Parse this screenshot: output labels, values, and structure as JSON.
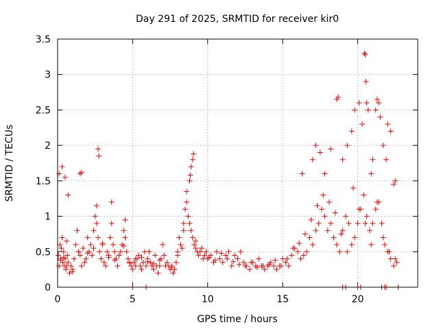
{
  "chart_data": {
    "type": "scatter",
    "title": "Day 291 of 2025, SRMTID for receiver kir0",
    "xlabel": "GPS time / hours",
    "ylabel": "SRMTID / TECUs",
    "xlim": [
      0,
      24
    ],
    "ylim": [
      0,
      3.5
    ],
    "xticks": [
      0,
      5,
      10,
      15,
      20
    ],
    "xtick_labels": [
      "0",
      "5",
      "10",
      "15",
      "20"
    ],
    "yticks": [
      0,
      0.5,
      1,
      1.5,
      2,
      2.5,
      3,
      3.5
    ],
    "ytick_labels": [
      "0",
      "0.5",
      "1",
      "1.5",
      "2",
      "2.5",
      "3",
      "3.5"
    ],
    "grid": true,
    "marker": "+",
    "series": [
      {
        "name": "SRMTID",
        "color": "#ee0000",
        "x": [
          0.05,
          0.1,
          0.15,
          0.2,
          0.25,
          0.3,
          0.35,
          0.4,
          0.45,
          0.5,
          0.55,
          0.6,
          0.65,
          0.7,
          0.8,
          0.9,
          1.0,
          1.1,
          1.2,
          1.3,
          1.4,
          1.5,
          1.6,
          1.7,
          1.8,
          1.9,
          2.0,
          2.1,
          2.2,
          2.3,
          2.4,
          2.5,
          2.6,
          2.7,
          2.8,
          2.9,
          3.0,
          3.1,
          3.2,
          3.3,
          3.4,
          3.5,
          3.6,
          3.7,
          3.8,
          3.9,
          4.0,
          4.1,
          4.2,
          4.3,
          4.4,
          4.5,
          4.6,
          4.7,
          4.8,
          4.9,
          5.0,
          5.1,
          5.2,
          5.3,
          5.4,
          5.5,
          5.6,
          5.7,
          5.8,
          5.9,
          6.0,
          6.1,
          6.2,
          6.3,
          6.4,
          6.5,
          6.6,
          6.7,
          6.8,
          6.9,
          7.0,
          7.1,
          7.2,
          7.3,
          7.4,
          7.5,
          7.6,
          7.7,
          7.8,
          7.9,
          8.0,
          8.1,
          8.2,
          8.3,
          8.4,
          8.5,
          8.6,
          8.7,
          8.8,
          8.9,
          9.0,
          9.1,
          9.2,
          9.3,
          9.4,
          9.5,
          9.6,
          9.7,
          9.8,
          9.9,
          10.0,
          10.2,
          10.4,
          10.6,
          10.8,
          11.0,
          11.2,
          11.4,
          11.6,
          11.8,
          12.0,
          12.2,
          12.4,
          12.6,
          12.8,
          13.0,
          13.2,
          13.4,
          13.6,
          13.8,
          14.0,
          14.2,
          14.4,
          14.6,
          14.8,
          15.0,
          15.2,
          15.4,
          15.6,
          15.8,
          16.0,
          16.2,
          16.4,
          16.6,
          16.8,
          17.0,
          17.2,
          17.4,
          17.6,
          17.8,
          18.0,
          18.2,
          18.4,
          18.6,
          18.8,
          19.0,
          19.2,
          19.4,
          19.6,
          19.8,
          20.0,
          20.2,
          20.4,
          20.6,
          20.8,
          21.0,
          21.2,
          21.4,
          21.6,
          21.8,
          22.0,
          22.2,
          22.4,
          22.6,
          0.1,
          0.3,
          0.5,
          0.7,
          1.5,
          1.6,
          2.6,
          2.7,
          2.75,
          3.6,
          4.5,
          8.8,
          8.85,
          8.9,
          9.0,
          9.05,
          16.3,
          17.0,
          17.2,
          17.5,
          17.8,
          18.2,
          18.6,
          18.7,
          19.0,
          19.3,
          19.6,
          19.8,
          20.1,
          20.3,
          20.45,
          20.5,
          20.55,
          20.6,
          20.7,
          20.9,
          21.0,
          21.2,
          21.3,
          21.4,
          21.5,
          21.7,
          21.9,
          22.0,
          22.2,
          22.4,
          22.5,
          5.0,
          5.9,
          19.0,
          19.2,
          20.0,
          20.2,
          21.6,
          21.8,
          21.9,
          22.7,
          0.2,
          0.4,
          0.6,
          1.0,
          1.4,
          2.0,
          2.4,
          3.0,
          3.4,
          3.8,
          4.4,
          4.8,
          5.2,
          5.6,
          6.0,
          6.4,
          6.8,
          7.2,
          7.6,
          8.0,
          8.4,
          8.6,
          9.2,
          9.6,
          10.1,
          10.5,
          10.9,
          11.3,
          11.7,
          12.1,
          12.5,
          12.9,
          13.3,
          13.7,
          14.1,
          14.5,
          14.9,
          15.3,
          15.7,
          16.1,
          16.5,
          16.9,
          17.3,
          17.7,
          18.1,
          18.5,
          18.9,
          19.3,
          19.7,
          20.1,
          20.5,
          20.9,
          21.3,
          21.7,
          22.1,
          22.5
        ],
        "y": [
          0.45,
          0.3,
          0.6,
          0.4,
          0.55,
          0.7,
          0.35,
          0.5,
          0.3,
          0.4,
          0.25,
          0.3,
          0.45,
          0.35,
          0.2,
          0.3,
          0.25,
          0.4,
          0.6,
          0.8,
          0.5,
          0.45,
          0.3,
          0.55,
          0.35,
          0.4,
          0.7,
          0.5,
          0.6,
          0.45,
          0.8,
          1.0,
          0.9,
          0.7,
          0.5,
          0.4,
          0.6,
          0.35,
          0.3,
          0.5,
          0.45,
          0.7,
          0.9,
          0.6,
          0.5,
          0.4,
          0.3,
          0.45,
          0.5,
          0.6,
          0.8,
          0.7,
          0.5,
          0.4,
          0.35,
          0.3,
          0.25,
          0.35,
          0.3,
          0.4,
          0.45,
          0.3,
          0.25,
          0.35,
          0.5,
          0.3,
          0.4,
          0.5,
          0.35,
          0.3,
          0.25,
          0.45,
          0.3,
          0.2,
          0.3,
          0.4,
          0.6,
          0.45,
          0.3,
          0.35,
          0.3,
          0.25,
          0.3,
          0.2,
          0.25,
          0.35,
          0.5,
          0.7,
          0.6,
          0.55,
          0.8,
          1.1,
          1.2,
          1.0,
          0.9,
          0.8,
          0.7,
          0.6,
          0.55,
          0.5,
          0.45,
          0.5,
          0.55,
          0.4,
          0.45,
          0.5,
          0.4,
          0.45,
          0.35,
          0.5,
          0.4,
          0.35,
          0.45,
          0.5,
          0.3,
          0.45,
          0.4,
          0.5,
          0.35,
          0.3,
          0.25,
          0.35,
          0.3,
          0.4,
          0.3,
          0.25,
          0.3,
          0.35,
          0.3,
          0.25,
          0.3,
          0.4,
          0.35,
          0.3,
          0.45,
          0.55,
          0.5,
          0.4,
          0.45,
          0.5,
          0.7,
          0.6,
          0.8,
          0.9,
          1.1,
          1.0,
          0.8,
          0.9,
          0.7,
          0.6,
          0.5,
          0.8,
          1.0,
          0.9,
          0.6,
          0.7,
          0.9,
          1.1,
          1.3,
          1.0,
          0.8,
          0.9,
          1.1,
          1.2,
          0.9,
          0.6,
          0.5,
          0.4,
          0.3,
          0.35,
          1.6,
          1.7,
          1.55,
          1.3,
          1.6,
          1.62,
          1.15,
          1.95,
          1.85,
          1.2,
          0.95,
          1.5,
          1.58,
          1.7,
          1.8,
          1.88,
          1.6,
          1.8,
          2.0,
          1.9,
          1.6,
          1.95,
          2.65,
          2.68,
          1.8,
          2.0,
          2.2,
          2.5,
          2.6,
          2.3,
          3.3,
          3.28,
          2.9,
          2.6,
          2.5,
          1.6,
          1.8,
          2.5,
          2.65,
          2.6,
          2.4,
          2.0,
          1.8,
          2.3,
          2.2,
          1.45,
          1.5,
          0.0,
          0.0,
          0.0,
          0.0,
          0.0,
          0.0,
          0.0,
          0.0,
          0.0,
          0.0,
          0.38,
          0.42,
          0.65,
          0.22,
          0.5,
          0.48,
          0.55,
          0.62,
          0.42,
          0.38,
          0.58,
          0.34,
          0.4,
          0.42,
          0.36,
          0.33,
          0.38,
          0.3,
          0.28,
          0.45,
          0.9,
          1.35,
          0.65,
          0.55,
          0.42,
          0.38,
          0.48,
          0.4,
          0.36,
          0.32,
          0.3,
          0.35,
          0.28,
          0.3,
          0.32,
          0.38,
          0.3,
          0.4,
          0.55,
          0.62,
          0.75,
          0.95,
          1.15,
          1.3,
          1.2,
          1.05,
          0.75,
          0.5,
          1.4,
          1.1,
          0.9,
          0.6,
          1.2,
          0.7,
          0.5,
          0.4
        ]
      }
    ]
  }
}
